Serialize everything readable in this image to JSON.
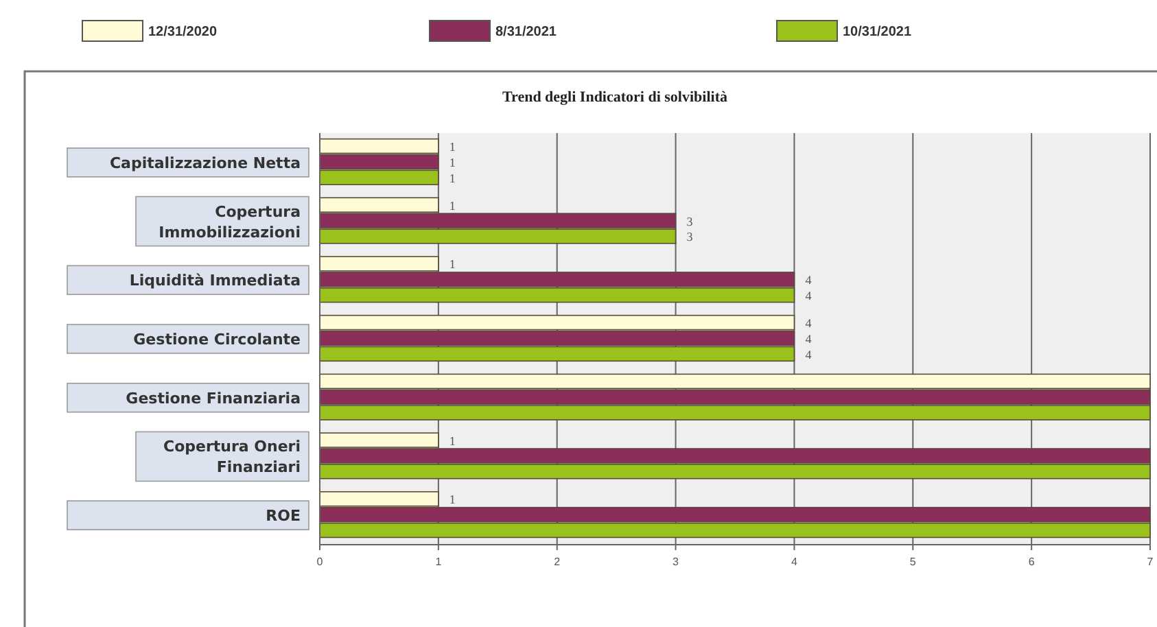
{
  "chart_data": {
    "type": "bar",
    "orientation": "horizontal",
    "title": "Trend degli Indicatori di solvibilità",
    "categories": [
      "Capitalizzazione Netta",
      "Copertura Immobilizzazioni",
      "Liquidità Immediata",
      "Gestione Circolante",
      "Gestione Finanziaria",
      "Copertura Oneri Finanziari",
      "ROE"
    ],
    "series": [
      {
        "name": "12/31/2020",
        "color": "#fffbd6",
        "values": [
          1,
          1,
          1,
          4,
          7,
          1,
          1
        ],
        "value_labels": [
          "1",
          "1",
          "1",
          "4",
          null,
          "1",
          "1"
        ]
      },
      {
        "name": "8/31/2021",
        "color": "#8b2f5a",
        "values": [
          1,
          3,
          4,
          4,
          7,
          7,
          7
        ],
        "value_labels": [
          "1",
          "3",
          "4",
          "4",
          null,
          null,
          null
        ]
      },
      {
        "name": "10/31/2021",
        "color": "#99c21c",
        "values": [
          1,
          3,
          4,
          4,
          7,
          7,
          7
        ],
        "value_labels": [
          "1",
          "3",
          "4",
          "4",
          null,
          null,
          null
        ]
      }
    ],
    "xlim": [
      0,
      7
    ],
    "xticks": [
      0,
      1,
      2,
      3,
      4,
      5,
      6,
      7
    ],
    "grid": "x",
    "legend": "top"
  }
}
